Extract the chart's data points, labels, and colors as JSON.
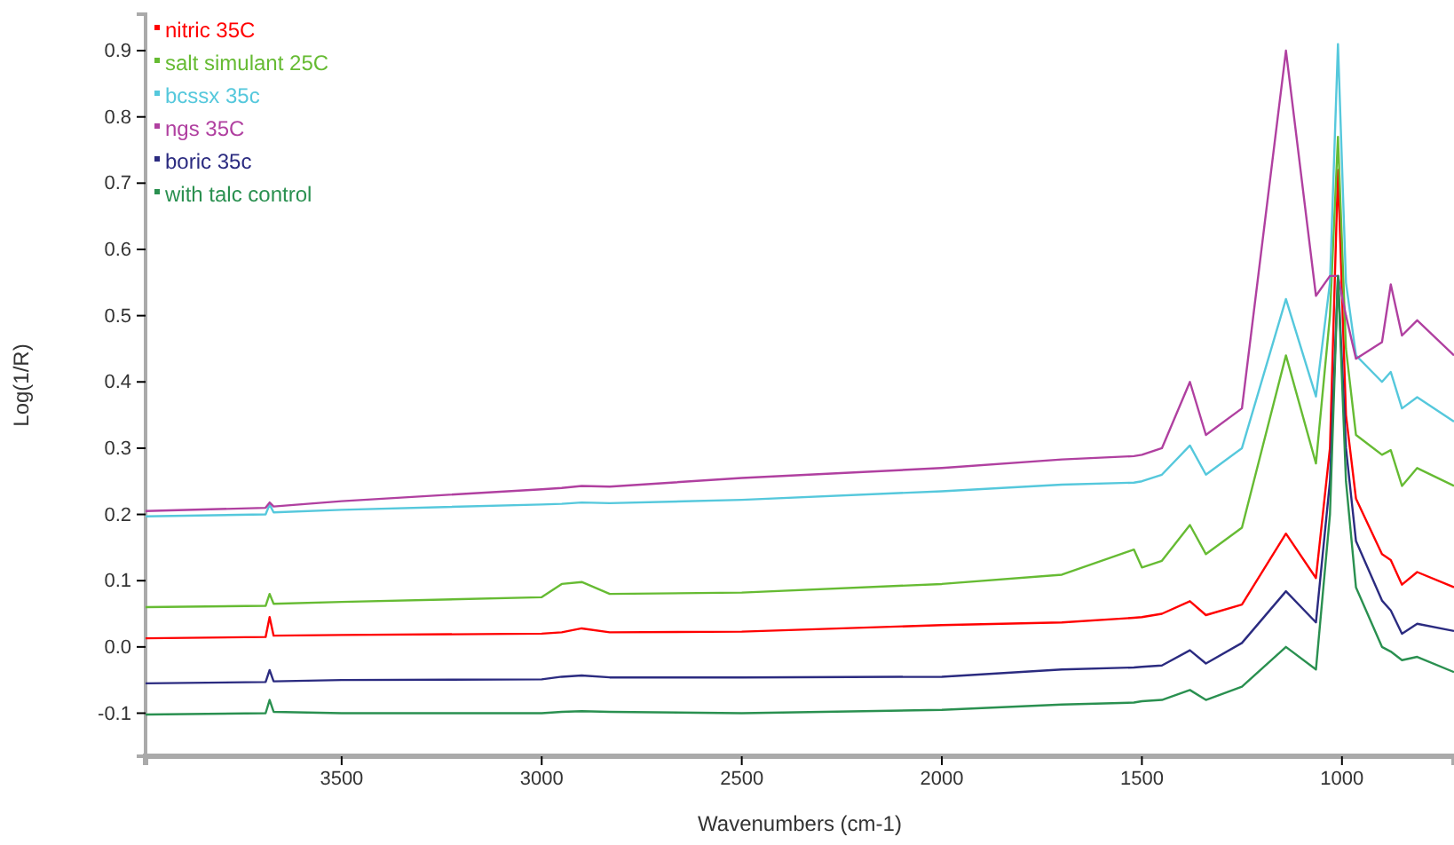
{
  "chart_data": {
    "type": "line",
    "xlabel": "Wavenumbers (cm-1)",
    "ylabel": "Log(1/R)",
    "xlim": [
      3990,
      720
    ],
    "ylim": [
      -0.165,
      0.955
    ],
    "xticks": [
      3500,
      3000,
      2500,
      2000,
      1500,
      1000
    ],
    "yticks": [
      -0.1,
      {
        "value": 0,
        "label": "0.0"
      },
      0.1,
      0.2,
      0.3,
      0.4,
      0.5,
      0.6,
      0.7,
      0.8,
      0.9
    ],
    "x": [
      3990,
      3690,
      3680,
      3670,
      3500,
      3000,
      2950,
      2900,
      2830,
      2500,
      2000,
      1700,
      1520,
      1500,
      1450,
      1380,
      1340,
      1250,
      1140,
      1065,
      1030,
      1010,
      990,
      965,
      900,
      878,
      850,
      812,
      720
    ],
    "legend": "top left",
    "grid": false,
    "line_style": "solid",
    "marker": "none",
    "series": [
      {
        "name": "nitric 35C",
        "color": "#ff0000",
        "values": [
          0.013,
          0.015,
          0.045,
          0.017,
          0.018,
          0.02,
          0.022,
          0.028,
          0.022,
          0.023,
          0.033,
          0.037,
          0.044,
          0.045,
          0.05,
          0.069,
          0.048,
          0.064,
          0.171,
          0.104,
          0.3,
          0.72,
          0.35,
          0.224,
          0.14,
          0.131,
          0.094,
          0.113,
          0.09
        ]
      },
      {
        "name": "salt simulant 25C",
        "color": "#66bb33",
        "values": [
          0.06,
          0.062,
          0.08,
          0.065,
          0.068,
          0.075,
          0.095,
          0.098,
          0.08,
          0.082,
          0.095,
          0.109,
          0.147,
          0.12,
          0.13,
          0.184,
          0.14,
          0.18,
          0.44,
          0.277,
          0.5,
          0.77,
          0.45,
          0.32,
          0.29,
          0.297,
          0.243,
          0.27,
          0.243
        ]
      },
      {
        "name": "bcssx 35c",
        "color": "#55c8dc",
        "values": [
          0.197,
          0.2,
          0.215,
          0.203,
          0.207,
          0.215,
          0.216,
          0.218,
          0.217,
          0.222,
          0.235,
          0.245,
          0.248,
          0.25,
          0.26,
          0.304,
          0.26,
          0.3,
          0.525,
          0.378,
          0.55,
          0.91,
          0.55,
          0.44,
          0.4,
          0.415,
          0.36,
          0.377,
          0.34
        ]
      },
      {
        "name": "ngs 35C",
        "color": "#b040a0",
        "values": [
          0.205,
          0.21,
          0.218,
          0.212,
          0.22,
          0.238,
          0.24,
          0.243,
          0.242,
          0.255,
          0.27,
          0.283,
          0.288,
          0.29,
          0.3,
          0.4,
          0.32,
          0.36,
          0.9,
          0.53,
          0.56,
          0.56,
          0.5,
          0.435,
          0.46,
          0.547,
          0.47,
          0.493,
          0.44
        ]
      },
      {
        "name": "boric 35c",
        "color": "#2b2b80",
        "values": [
          -0.055,
          -0.053,
          -0.035,
          -0.052,
          -0.05,
          -0.049,
          -0.045,
          -0.043,
          -0.046,
          -0.046,
          -0.045,
          -0.034,
          -0.031,
          -0.03,
          -0.028,
          -0.005,
          -0.025,
          0.006,
          0.084,
          0.037,
          0.25,
          0.56,
          0.3,
          0.16,
          0.07,
          0.055,
          0.02,
          0.035,
          0.024
        ]
      },
      {
        "name": "with talc control",
        "color": "#2a9050",
        "values": [
          -0.102,
          -0.1,
          -0.08,
          -0.098,
          -0.1,
          -0.1,
          -0.098,
          -0.097,
          -0.098,
          -0.1,
          -0.095,
          -0.087,
          -0.084,
          -0.082,
          -0.08,
          -0.065,
          -0.08,
          -0.06,
          0.0,
          -0.034,
          0.2,
          0.56,
          0.25,
          0.09,
          0.0,
          -0.007,
          -0.02,
          -0.015,
          -0.038
        ]
      }
    ]
  }
}
